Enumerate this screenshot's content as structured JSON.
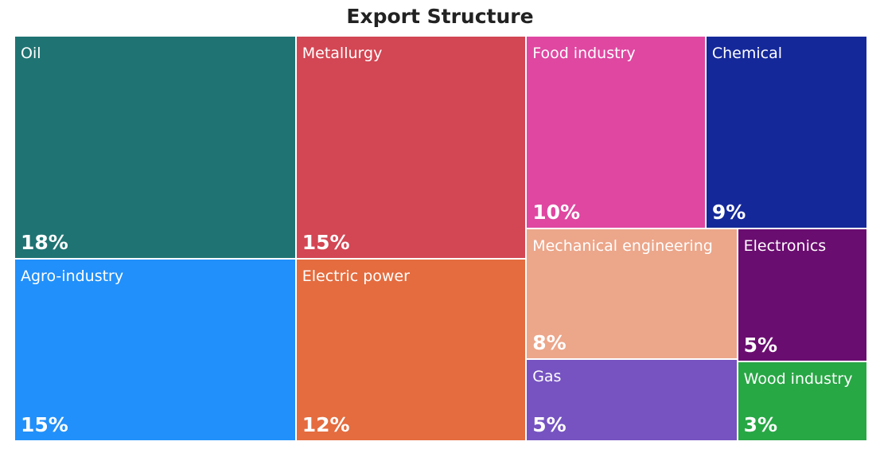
{
  "chart_data": {
    "type": "treemap",
    "title": "Export Structure",
    "unit": "%",
    "items": [
      {
        "name": "Oil",
        "label": "Oil",
        "value": 18,
        "value_label": "18%",
        "color": "#1f7373"
      },
      {
        "name": "Metallurgy",
        "label": "Metallurgy",
        "value": 15,
        "value_label": "15%",
        "color": "#d34653"
      },
      {
        "name": "Food industry",
        "label": "Food industry",
        "value": 10,
        "value_label": "10%",
        "color": "#df47a1"
      },
      {
        "name": "Chemical",
        "label": "Chemical",
        "value": 9,
        "value_label": "9%",
        "color": "#15289a"
      },
      {
        "name": "Agro-industry",
        "label": "Agro-industry",
        "value": 15,
        "value_label": "15%",
        "color": "#2190fa"
      },
      {
        "name": "Electric power",
        "label": "Electric power",
        "value": 12,
        "value_label": "12%",
        "color": "#e46c3f"
      },
      {
        "name": "Mechanical engineering",
        "label": "Mechanical engineering",
        "value": 8,
        "value_label": "8%",
        "color": "#eca68a"
      },
      {
        "name": "Electronics",
        "label": "Electronics",
        "value": 5,
        "value_label": "5%",
        "color": "#6a0d70"
      },
      {
        "name": "Gas",
        "label": "Gas",
        "value": 5,
        "value_label": "5%",
        "color": "#7653c1"
      },
      {
        "name": "Wood industry",
        "label": "Wood industry",
        "value": 3,
        "value_label": "3%",
        "color": "#28a745"
      }
    ]
  }
}
